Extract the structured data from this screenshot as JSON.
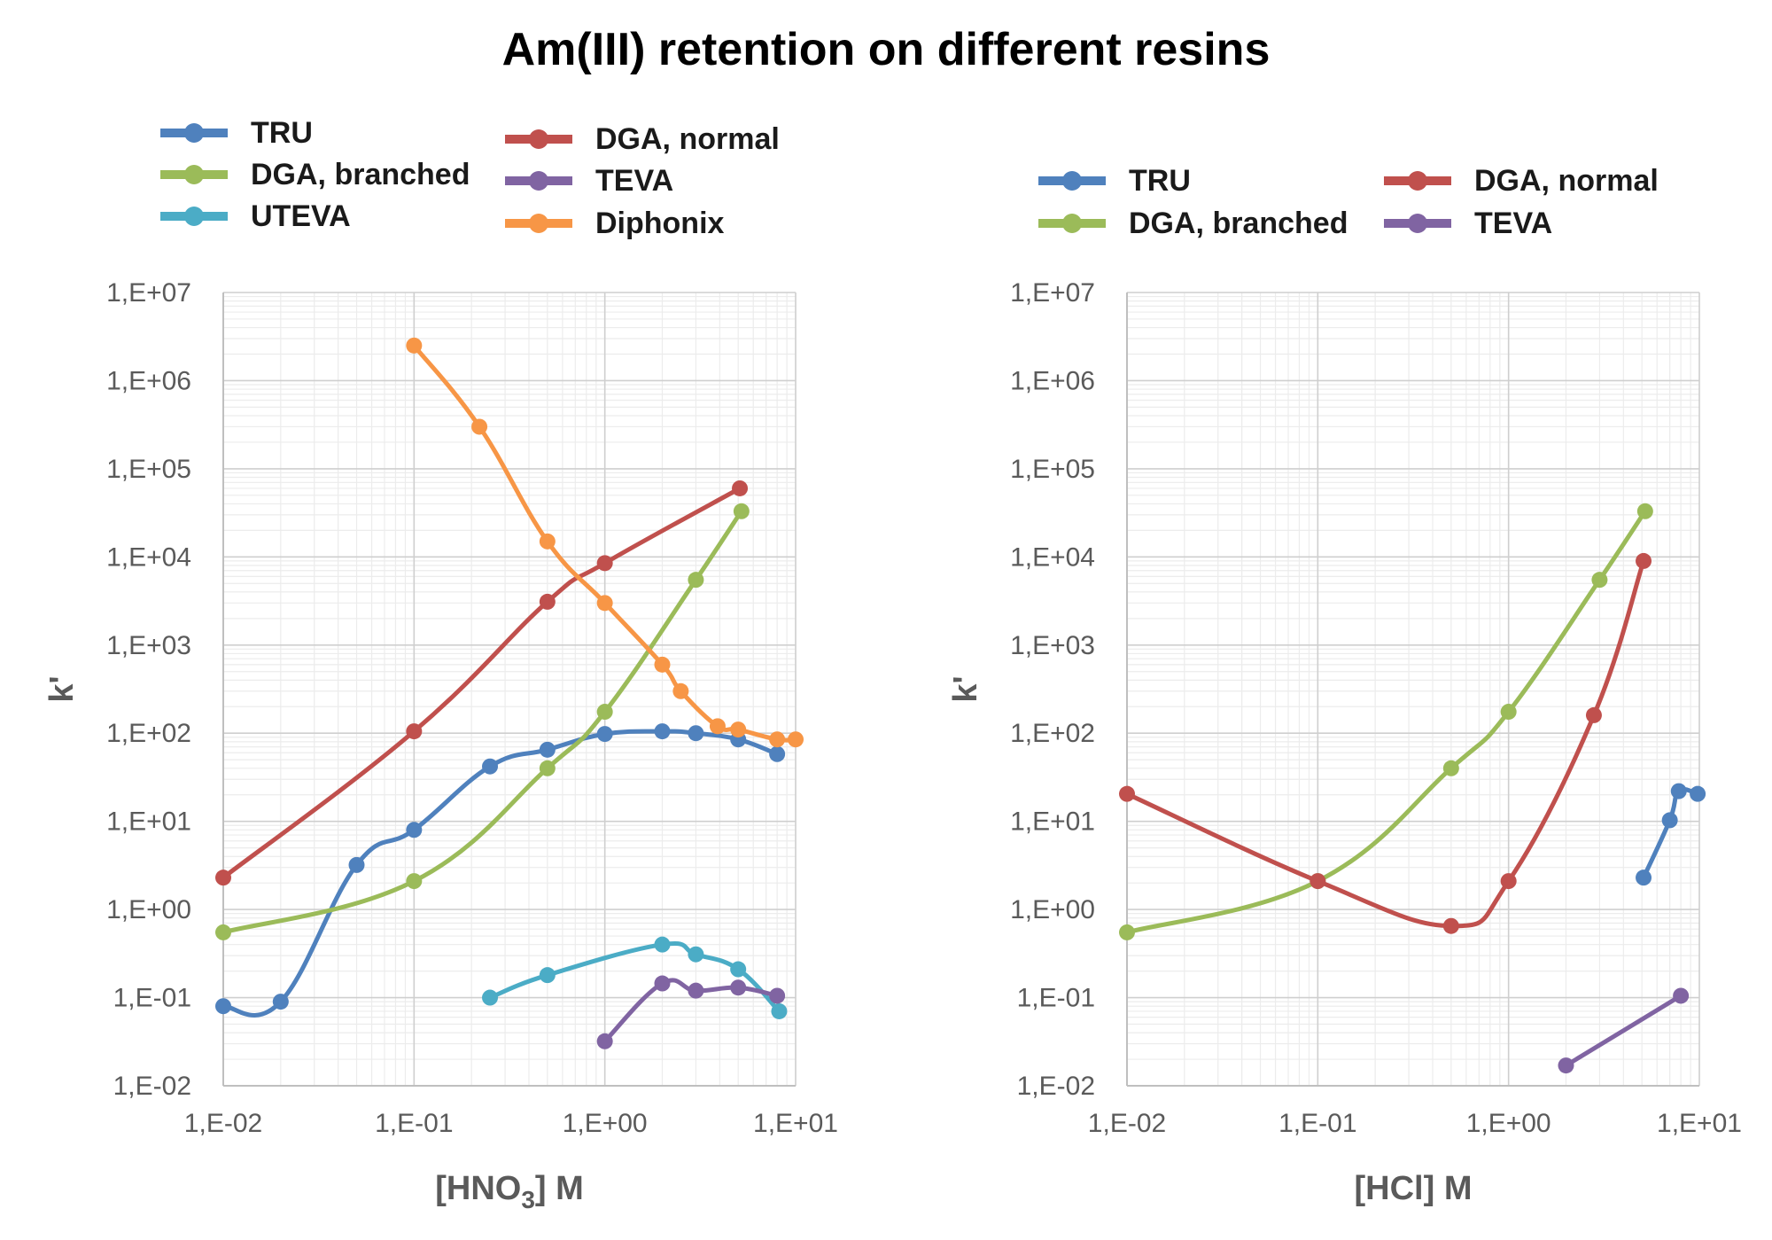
{
  "title": "Am(III) retention on different resins",
  "chart_data": [
    {
      "type": "line",
      "xscale": "log",
      "yscale": "log",
      "xlim": [
        0.01,
        10
      ],
      "ylim": [
        0.01,
        10000000
      ],
      "x_ticks": [
        0.01,
        0.1,
        1,
        10
      ],
      "x_tick_labels": [
        "1,E-02",
        "1,E-01",
        "1,E+00",
        "1,E+01"
      ],
      "y_ticks": [
        0.01,
        0.1,
        1,
        10,
        100,
        1000,
        10000,
        100000,
        1000000,
        10000000
      ],
      "y_tick_labels": [
        "1,E-02",
        "1,E-01",
        "1,E+00",
        "1,E+01",
        "1,E+02",
        "1,E+03",
        "1,E+04",
        "1,E+05",
        "1,E+06",
        "1,E+07"
      ],
      "xlabel_main": "[HNO",
      "xlabel_sub": "3",
      "xlabel_tail": "] M",
      "ylabel": "k'",
      "grid": true,
      "legend_position": "top",
      "series": [
        {
          "name": "TRU",
          "color": "#4f81bd",
          "x": [
            0.01,
            0.02,
            0.05,
            0.1,
            0.25,
            0.5,
            1,
            2,
            3,
            5,
            8
          ],
          "y": [
            0.08,
            0.09,
            3.2,
            8,
            42,
            65,
            98,
            105,
            100,
            85,
            58
          ]
        },
        {
          "name": "DGA, branched",
          "color": "#9bbb59",
          "x": [
            0.01,
            0.1,
            0.5,
            1,
            3,
            5.2
          ],
          "y": [
            0.55,
            2.1,
            40,
            175,
            5500,
            33000
          ]
        },
        {
          "name": "UTEVA",
          "color": "#4bacc6",
          "x": [
            0.25,
            0.5,
            2,
            3,
            5,
            8.2
          ],
          "y": [
            0.1,
            0.18,
            0.4,
            0.31,
            0.21,
            0.07
          ]
        },
        {
          "name": "DGA, normal",
          "color": "#c0504d",
          "x": [
            0.01,
            0.1,
            0.5,
            1,
            5.1
          ],
          "y": [
            2.3,
            105,
            3100,
            8500,
            60000
          ]
        },
        {
          "name": "TEVA",
          "color": "#8064a2",
          "x": [
            1,
            2,
            3,
            5,
            8
          ],
          "y": [
            0.032,
            0.145,
            0.12,
            0.13,
            0.105
          ]
        },
        {
          "name": "Diphonix",
          "color": "#f79646",
          "x": [
            0.1,
            0.22,
            0.5,
            1,
            2,
            2.5,
            3.9,
            5,
            8,
            10
          ],
          "y": [
            2500000,
            300000,
            15000,
            3000,
            600,
            300,
            120,
            110,
            85,
            85
          ]
        }
      ]
    },
    {
      "type": "line",
      "xscale": "log",
      "yscale": "log",
      "xlim": [
        0.01,
        10
      ],
      "ylim": [
        0.01,
        10000000
      ],
      "x_ticks": [
        0.01,
        0.1,
        1,
        10
      ],
      "x_tick_labels": [
        "1,E-02",
        "1,E-01",
        "1,E+00",
        "1,E+01"
      ],
      "y_ticks": [
        0.01,
        0.1,
        1,
        10,
        100,
        1000,
        10000,
        100000,
        1000000,
        10000000
      ],
      "y_tick_labels": [
        "1,E-02",
        "1,E-01",
        "1,E+00",
        "1,E+01",
        "1,E+02",
        "1,E+03",
        "1,E+04",
        "1,E+05",
        "1,E+06",
        "1,E+07"
      ],
      "xlabel_main": "[HCl] M",
      "xlabel_sub": "",
      "xlabel_tail": "",
      "ylabel": "k'",
      "grid": true,
      "legend_position": "top",
      "series": [
        {
          "name": "TRU",
          "color": "#4f81bd",
          "x": [
            5.1,
            7,
            7.8,
            9.8
          ],
          "y": [
            2.3,
            10.3,
            22,
            20.5
          ]
        },
        {
          "name": "DGA, branched",
          "color": "#9bbb59",
          "x": [
            0.01,
            0.1,
            0.5,
            1,
            3,
            5.2
          ],
          "y": [
            0.55,
            2.1,
            40,
            175,
            5500,
            33000
          ]
        },
        {
          "name": "DGA, normal",
          "color": "#c0504d",
          "x": [
            0.01,
            0.1,
            0.5,
            1,
            2.8,
            5.1
          ],
          "y": [
            20.5,
            2.1,
            0.65,
            2.1,
            160,
            9000
          ]
        },
        {
          "name": "TEVA",
          "color": "#8064a2",
          "x": [
            2,
            8
          ],
          "y": [
            0.017,
            0.105
          ]
        }
      ]
    }
  ]
}
